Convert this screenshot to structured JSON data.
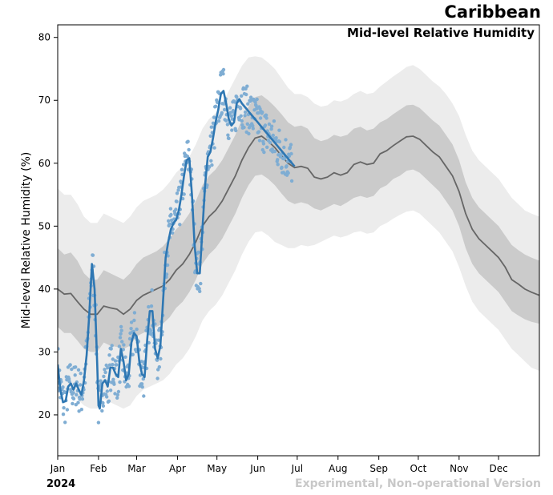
{
  "header": {
    "region": "Caribbean"
  },
  "footer": {
    "year": "2024",
    "note": "Experimental, Non-operational Version"
  },
  "chart_data": {
    "type": "line",
    "title": "Mid-level Relative Humidity",
    "ylabel": "Mid-level Relative Humidity (%)",
    "xlabel": "",
    "xlim": [
      0,
      366
    ],
    "ylim": [
      13.5,
      82
    ],
    "yticks": [
      20,
      30,
      40,
      50,
      60,
      70,
      80
    ],
    "months": [
      {
        "label": "Jan",
        "day": 0
      },
      {
        "label": "Feb",
        "day": 31
      },
      {
        "label": "Mar",
        "day": 60
      },
      {
        "label": "Apr",
        "day": 91
      },
      {
        "label": "May",
        "day": 121
      },
      {
        "label": "Jun",
        "day": 152
      },
      {
        "label": "Jul",
        "day": 182
      },
      {
        "label": "Aug",
        "day": 213
      },
      {
        "label": "Sep",
        "day": 244
      },
      {
        "label": "Oct",
        "day": 274
      },
      {
        "label": "Nov",
        "day": 305
      },
      {
        "label": "Dec",
        "day": 335
      }
    ],
    "colors": {
      "outer_band": "#ececec",
      "inner_band": "#cbcbcb",
      "climatology": "#666666",
      "obs_line": "#2e77b3",
      "obs_points": "#7fadd3"
    },
    "climatology_days": [
      0,
      5,
      10,
      15,
      20,
      25,
      30,
      35,
      40,
      45,
      50,
      55,
      60,
      65,
      70,
      75,
      80,
      85,
      90,
      95,
      100,
      105,
      110,
      115,
      120,
      125,
      130,
      135,
      140,
      145,
      150,
      155,
      160,
      165,
      170,
      175,
      180,
      185,
      190,
      195,
      200,
      205,
      210,
      215,
      220,
      225,
      230,
      235,
      240,
      245,
      250,
      255,
      260,
      265,
      270,
      275,
      280,
      285,
      290,
      295,
      300,
      305,
      310,
      315,
      320,
      325,
      330,
      335,
      340,
      345,
      350,
      355,
      360,
      366
    ],
    "series": [
      {
        "name": "climatology mean",
        "values": [
          40.0,
          39.2,
          39.3,
          38.0,
          36.8,
          36.0,
          36.0,
          37.3,
          37.0,
          36.8,
          36.0,
          36.8,
          38.2,
          39.0,
          39.5,
          40.0,
          40.5,
          41.5,
          43.0,
          44.0,
          45.5,
          47.5,
          50.0,
          51.5,
          52.5,
          54.0,
          56.0,
          58.0,
          60.5,
          62.5,
          64.0,
          64.3,
          63.5,
          62.5,
          61.2,
          60.0,
          59.3,
          59.5,
          59.2,
          57.8,
          57.5,
          57.8,
          58.5,
          58.1,
          58.5,
          59.8,
          60.2,
          59.8,
          60.0,
          61.5,
          62.0,
          62.8,
          63.5,
          64.2,
          64.3,
          63.8,
          62.8,
          61.8,
          61.0,
          59.5,
          58.0,
          55.5,
          52.0,
          49.5,
          48.0,
          47.0,
          46.0,
          45.0,
          43.5,
          41.5,
          40.8,
          40.0,
          39.5,
          39.0
        ]
      },
      {
        "name": "inner band upper",
        "values": [
          46.5,
          45.5,
          45.8,
          44.5,
          42.5,
          41.5,
          41.5,
          43.0,
          42.5,
          42.0,
          41.5,
          42.5,
          44.0,
          45.0,
          45.5,
          46.0,
          46.8,
          48.0,
          49.5,
          50.5,
          52.0,
          54.0,
          56.5,
          58.0,
          59.0,
          60.5,
          62.5,
          64.5,
          67.0,
          69.0,
          70.5,
          70.8,
          70.0,
          69.0,
          67.8,
          66.5,
          65.8,
          66.0,
          65.5,
          64.0,
          63.5,
          63.8,
          64.5,
          64.2,
          64.5,
          65.5,
          65.8,
          65.2,
          65.5,
          66.5,
          67.0,
          67.8,
          68.5,
          69.2,
          69.3,
          68.8,
          67.8,
          66.8,
          66.0,
          64.5,
          63.0,
          60.5,
          57.0,
          54.5,
          53.0,
          52.0,
          51.0,
          50.0,
          48.5,
          47.0,
          46.2,
          45.5,
          45.0,
          44.5
        ]
      },
      {
        "name": "inner band lower",
        "values": [
          34.0,
          33.0,
          33.0,
          31.8,
          30.5,
          30.0,
          30.0,
          31.5,
          31.0,
          30.8,
          30.5,
          31.0,
          32.5,
          33.0,
          33.5,
          34.0,
          34.5,
          35.5,
          37.0,
          38.0,
          39.5,
          41.5,
          44.0,
          45.5,
          46.5,
          48.0,
          50.0,
          52.0,
          54.5,
          56.5,
          58.0,
          58.2,
          57.5,
          56.5,
          55.2,
          54.0,
          53.5,
          53.8,
          53.5,
          52.8,
          52.5,
          53.0,
          53.5,
          53.2,
          53.8,
          54.5,
          54.8,
          54.5,
          54.8,
          56.0,
          56.5,
          57.5,
          58.0,
          58.8,
          59.0,
          58.5,
          57.5,
          56.5,
          55.5,
          54.0,
          52.5,
          50.0,
          46.5,
          44.0,
          42.5,
          41.5,
          40.5,
          39.5,
          38.0,
          36.5,
          35.8,
          35.2,
          34.8,
          34.5
        ]
      },
      {
        "name": "outer band upper",
        "values": [
          56.0,
          55.0,
          55.0,
          53.5,
          51.5,
          50.5,
          50.5,
          52.0,
          51.5,
          51.0,
          50.5,
          51.5,
          53.0,
          54.0,
          54.5,
          55.0,
          55.8,
          57.0,
          58.5,
          59.5,
          61.0,
          63.0,
          65.5,
          67.0,
          68.0,
          69.5,
          71.5,
          73.5,
          75.5,
          76.8,
          77.0,
          76.8,
          76.0,
          75.0,
          73.5,
          72.0,
          71.0,
          71.0,
          70.5,
          69.5,
          69.0,
          69.2,
          70.0,
          69.8,
          70.2,
          71.0,
          71.5,
          71.0,
          71.2,
          72.2,
          73.0,
          73.8,
          74.5,
          75.3,
          75.6,
          75.0,
          74.0,
          73.0,
          72.2,
          71.0,
          69.5,
          67.5,
          64.5,
          62.0,
          60.5,
          59.5,
          58.5,
          57.5,
          56.0,
          54.5,
          53.5,
          52.5,
          52.0,
          51.5
        ]
      },
      {
        "name": "outer band lower",
        "values": [
          24.5,
          23.5,
          23.5,
          22.5,
          21.5,
          21.0,
          21.0,
          22.5,
          22.0,
          21.5,
          21.0,
          21.5,
          23.0,
          24.0,
          24.5,
          25.0,
          25.5,
          26.5,
          28.0,
          29.0,
          30.5,
          32.5,
          35.0,
          36.5,
          37.5,
          39.0,
          41.0,
          43.0,
          45.5,
          47.5,
          49.0,
          49.2,
          48.5,
          47.5,
          47.0,
          46.5,
          46.5,
          47.0,
          46.8,
          47.0,
          47.5,
          48.0,
          48.5,
          48.2,
          48.5,
          49.0,
          49.2,
          48.8,
          49.0,
          50.0,
          50.5,
          51.2,
          51.8,
          52.3,
          52.5,
          52.0,
          51.0,
          50.0,
          49.0,
          47.5,
          46.0,
          43.5,
          40.5,
          38.0,
          36.5,
          35.5,
          34.5,
          33.5,
          32.0,
          30.5,
          29.5,
          28.5,
          27.5,
          27.0
        ]
      },
      {
        "name": "observed 2024 smoothed",
        "days": [
          0,
          2,
          4,
          6,
          8,
          10,
          12,
          14,
          16,
          18,
          20,
          22,
          24,
          26,
          28,
          30,
          31,
          32,
          34,
          36,
          38,
          40,
          42,
          44,
          46,
          48,
          50,
          52,
          54,
          56,
          58,
          60,
          62,
          64,
          66,
          68,
          70,
          72,
          74,
          76,
          78,
          80,
          82,
          84,
          86,
          88,
          90,
          92,
          94,
          96,
          98,
          100,
          102,
          104,
          106,
          108,
          110,
          112,
          114,
          116,
          118,
          120,
          122,
          124,
          126,
          128,
          130,
          132,
          134,
          136,
          138,
          140,
          142,
          144,
          146,
          148,
          150,
          152,
          154,
          156,
          158,
          160,
          162,
          164,
          166,
          168,
          170,
          172,
          174,
          176,
          178,
          180
        ],
        "values": [
          28.0,
          24.0,
          22.0,
          22.2,
          24.5,
          25.0,
          24.0,
          25.0,
          24.0,
          23.2,
          25.5,
          29.5,
          36.0,
          44.0,
          40.0,
          28.0,
          21.5,
          21.0,
          25.0,
          25.5,
          24.5,
          27.5,
          27.5,
          26.5,
          26.0,
          30.5,
          28.5,
          25.5,
          26.5,
          31.5,
          33.0,
          32.5,
          28.5,
          26.5,
          26.0,
          32.0,
          36.5,
          36.5,
          30.5,
          29.0,
          31.0,
          38.0,
          45.0,
          47.5,
          49.5,
          50.5,
          51.0,
          52.5,
          55.0,
          58.0,
          60.5,
          60.8,
          55.0,
          47.0,
          42.5,
          42.5,
          49.5,
          56.5,
          61.0,
          61.8,
          64.0,
          66.5,
          68.5,
          71.0,
          71.5,
          69.5,
          67.0,
          66.0,
          66.5,
          69.5,
          70.2,
          69.5,
          69.0,
          68.5,
          68.0,
          67.5,
          67.0,
          66.5,
          66.0,
          65.5,
          65.0,
          64.5,
          64.0,
          63.5,
          63.0,
          62.5,
          62.0,
          61.5,
          61.0,
          60.5,
          60.0,
          59.5
        ]
      },
      {
        "name": "observed 2024 daily points",
        "day_range": [
          0,
          178
        ]
      }
    ]
  }
}
